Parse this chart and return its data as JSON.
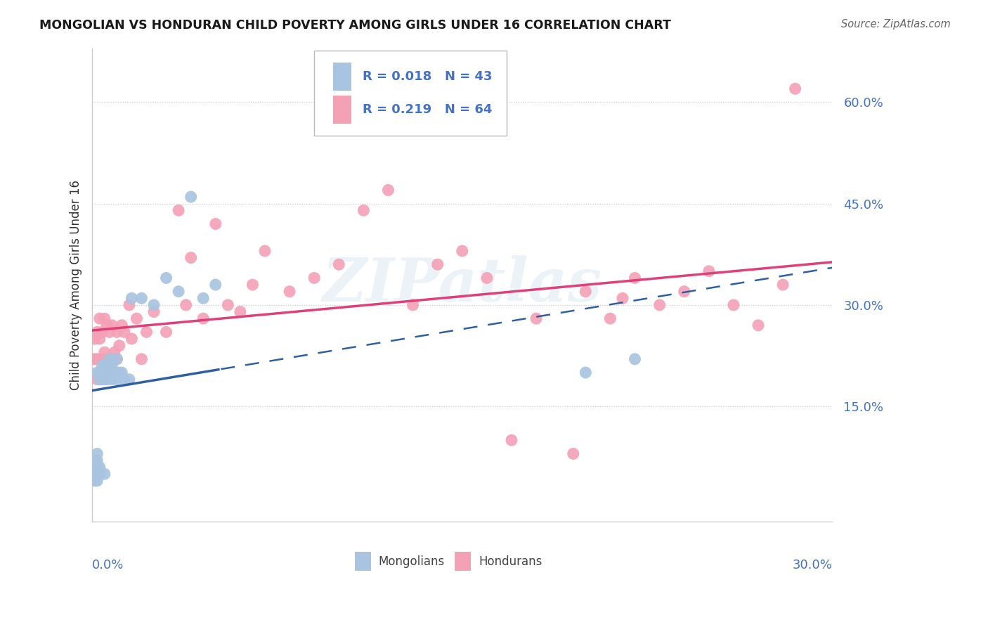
{
  "title": "MONGOLIAN VS HONDURAN CHILD POVERTY AMONG GIRLS UNDER 16 CORRELATION CHART",
  "source": "Source: ZipAtlas.com",
  "ylabel": "Child Poverty Among Girls Under 16",
  "ytick_labels": [
    "15.0%",
    "30.0%",
    "45.0%",
    "60.0%"
  ],
  "ytick_positions": [
    0.15,
    0.3,
    0.45,
    0.6
  ],
  "xtick_left": "0.0%",
  "xtick_right": "30.0%",
  "xmin": 0.0,
  "xmax": 0.3,
  "ymin": -0.02,
  "ymax": 0.68,
  "mongolian_color": "#a8c4e0",
  "honduran_color": "#f4a0b5",
  "mongolian_line_color": "#2e5fa3",
  "honduran_line_color": "#e0407a",
  "mongolian_R": 0.018,
  "mongolian_N": 43,
  "honduran_R": 0.219,
  "honduran_N": 64,
  "watermark": "ZIPatlas",
  "legend_label1": "Mongolians",
  "legend_label2": "Hondurans",
  "bg_color": "#ffffff",
  "grid_color": "#cccccc",
  "tick_color": "#4472c4",
  "title_color": "#1a1a1a",
  "source_color": "#666666",
  "mong_x": [
    0.001,
    0.001,
    0.001,
    0.001,
    0.002,
    0.002,
    0.002,
    0.002,
    0.002,
    0.002,
    0.003,
    0.003,
    0.003,
    0.003,
    0.004,
    0.004,
    0.004,
    0.005,
    0.005,
    0.005,
    0.006,
    0.006,
    0.007,
    0.007,
    0.008,
    0.008,
    0.009,
    0.01,
    0.01,
    0.011,
    0.012,
    0.013,
    0.015,
    0.016,
    0.02,
    0.025,
    0.03,
    0.035,
    0.04,
    0.045,
    0.05,
    0.2,
    0.22
  ],
  "mong_y": [
    0.04,
    0.05,
    0.06,
    0.07,
    0.04,
    0.05,
    0.06,
    0.07,
    0.08,
    0.2,
    0.05,
    0.06,
    0.19,
    0.2,
    0.19,
    0.2,
    0.21,
    0.05,
    0.19,
    0.21,
    0.19,
    0.21,
    0.2,
    0.22,
    0.19,
    0.21,
    0.2,
    0.19,
    0.22,
    0.2,
    0.2,
    0.19,
    0.19,
    0.31,
    0.31,
    0.3,
    0.34,
    0.32,
    0.46,
    0.31,
    0.33,
    0.2,
    0.22
  ],
  "hond_x": [
    0.001,
    0.001,
    0.002,
    0.002,
    0.002,
    0.003,
    0.003,
    0.003,
    0.004,
    0.004,
    0.005,
    0.005,
    0.005,
    0.006,
    0.006,
    0.007,
    0.007,
    0.008,
    0.008,
    0.009,
    0.01,
    0.01,
    0.011,
    0.012,
    0.013,
    0.015,
    0.016,
    0.018,
    0.02,
    0.022,
    0.025,
    0.03,
    0.035,
    0.038,
    0.04,
    0.045,
    0.05,
    0.055,
    0.06,
    0.065,
    0.07,
    0.08,
    0.09,
    0.1,
    0.11,
    0.12,
    0.13,
    0.14,
    0.15,
    0.16,
    0.17,
    0.18,
    0.195,
    0.2,
    0.21,
    0.215,
    0.22,
    0.23,
    0.24,
    0.25,
    0.26,
    0.27,
    0.28,
    0.285
  ],
  "hond_y": [
    0.22,
    0.25,
    0.19,
    0.22,
    0.26,
    0.22,
    0.25,
    0.28,
    0.22,
    0.26,
    0.2,
    0.23,
    0.28,
    0.22,
    0.27,
    0.21,
    0.26,
    0.22,
    0.27,
    0.23,
    0.22,
    0.26,
    0.24,
    0.27,
    0.26,
    0.3,
    0.25,
    0.28,
    0.22,
    0.26,
    0.29,
    0.26,
    0.44,
    0.3,
    0.37,
    0.28,
    0.42,
    0.3,
    0.29,
    0.33,
    0.38,
    0.32,
    0.34,
    0.36,
    0.44,
    0.47,
    0.3,
    0.36,
    0.38,
    0.34,
    0.1,
    0.28,
    0.08,
    0.32,
    0.28,
    0.31,
    0.34,
    0.3,
    0.32,
    0.35,
    0.3,
    0.27,
    0.33,
    0.62
  ]
}
